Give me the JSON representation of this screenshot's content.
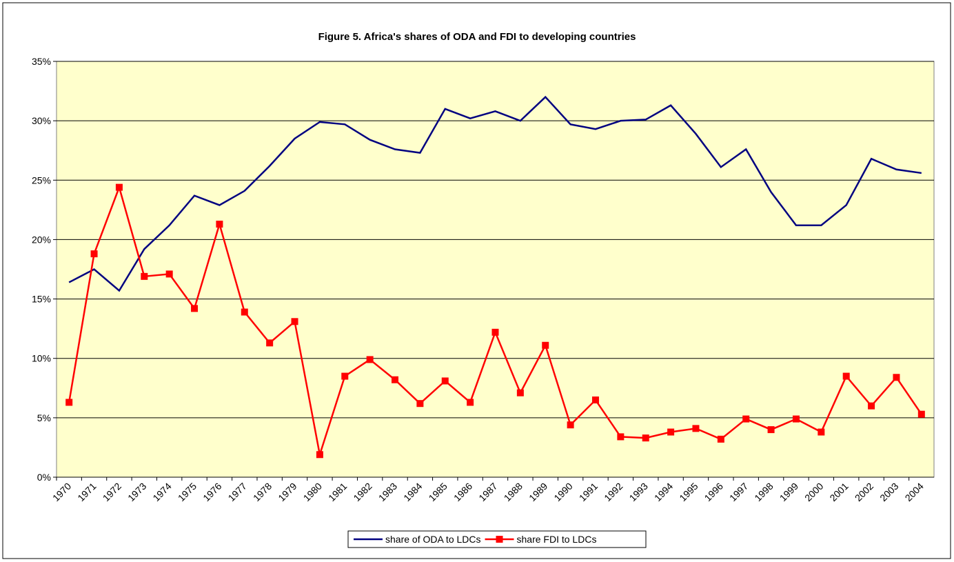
{
  "chart_data": {
    "type": "line",
    "title": "Figure 5. Africa's shares of ODA and FDI to developing countries",
    "categories": [
      "1970",
      "1971",
      "1972",
      "1973",
      "1974",
      "1975",
      "1976",
      "1977",
      "1978",
      "1979",
      "1980",
      "1981",
      "1982",
      "1983",
      "1984",
      "1985",
      "1986",
      "1987",
      "1988",
      "1989",
      "1990",
      "1991",
      "1992",
      "1993",
      "1994",
      "1995",
      "1996",
      "1997",
      "1998",
      "1999",
      "2000",
      "2001",
      "2002",
      "2003",
      "2004"
    ],
    "series": [
      {
        "name": "share of ODA to LDCs",
        "color": "#000080",
        "marker": "none",
        "values": [
          16.4,
          17.5,
          15.7,
          19.2,
          21.2,
          23.7,
          22.9,
          24.1,
          26.2,
          28.5,
          29.9,
          29.7,
          28.4,
          27.6,
          27.3,
          31.0,
          30.2,
          30.8,
          30.0,
          32.0,
          29.7,
          29.3,
          30.0,
          30.1,
          31.3,
          28.9,
          26.1,
          27.6,
          24.0,
          21.2,
          21.2,
          22.9,
          26.8,
          25.9,
          25.6
        ]
      },
      {
        "name": "share FDI to LDCs",
        "color": "#ff0000",
        "marker": "square",
        "values": [
          6.3,
          18.8,
          24.4,
          16.9,
          17.1,
          14.2,
          21.3,
          13.9,
          11.3,
          13.1,
          1.9,
          8.5,
          9.9,
          8.2,
          6.2,
          8.1,
          6.3,
          12.2,
          7.1,
          11.1,
          4.4,
          6.5,
          3.4,
          3.3,
          3.8,
          4.1,
          3.2,
          4.9,
          4.0,
          4.9,
          3.8,
          8.5,
          6.0,
          8.4,
          5.3
        ]
      }
    ],
    "ylim": [
      0,
      35
    ],
    "yticks": [
      {
        "value": 0,
        "label": "0%"
      },
      {
        "value": 5,
        "label": "5%"
      },
      {
        "value": 10,
        "label": "10%"
      },
      {
        "value": 15,
        "label": "15%"
      },
      {
        "value": 20,
        "label": "20%"
      },
      {
        "value": 25,
        "label": "25%"
      },
      {
        "value": 30,
        "label": "30%"
      },
      {
        "value": 35,
        "label": "35%"
      }
    ],
    "grid": true,
    "plot_background": "#ffffcc",
    "legend": "bottom"
  }
}
